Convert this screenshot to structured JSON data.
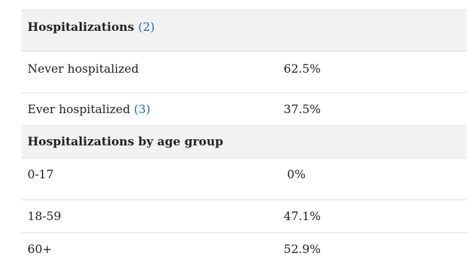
{
  "table": {
    "rows": [
      {
        "type": "header",
        "label": "Hospitalizations",
        "ref": "(2)",
        "value": ""
      },
      {
        "type": "data",
        "label": "Never hospitalized",
        "ref": "",
        "value": "62.5%"
      },
      {
        "type": "data",
        "label": "Ever hospitalized",
        "ref": "(3)",
        "value": "37.5%"
      },
      {
        "type": "header",
        "label": "Hospitalizations by age group",
        "ref": "",
        "value": ""
      },
      {
        "type": "data",
        "label": "0-17",
        "ref": "",
        "value": "0%"
      },
      {
        "type": "data",
        "label": "18-59",
        "ref": "",
        "value": "47.1%"
      },
      {
        "type": "data",
        "label": "60+",
        "ref": "",
        "value": "52.9%"
      }
    ]
  },
  "colors": {
    "link": "#1a6fb3",
    "header_bg": "#f2f2f2",
    "border": "#dddddd"
  }
}
